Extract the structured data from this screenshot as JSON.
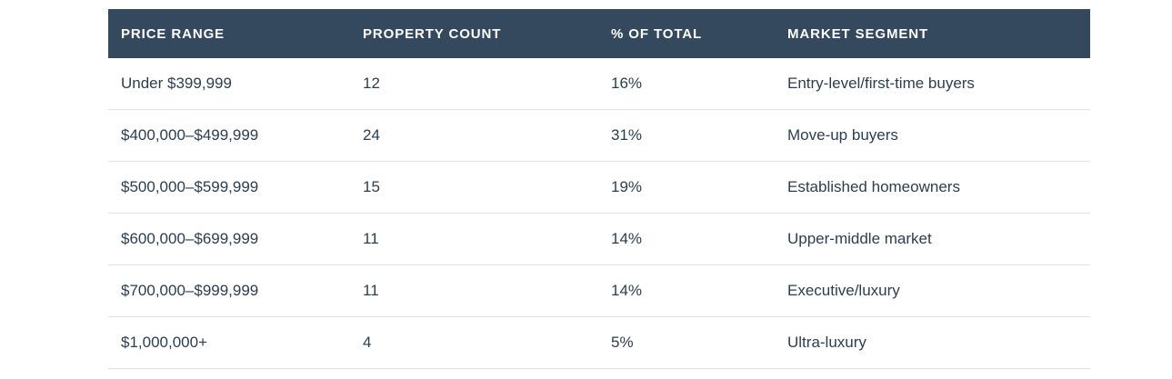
{
  "table": {
    "headers": [
      "PRICE RANGE",
      "PROPERTY COUNT",
      "% OF TOTAL",
      "MARKET SEGMENT"
    ],
    "rows": [
      {
        "price_range": "Under $399,999",
        "property_count": "12",
        "pct_of_total": "16%",
        "market_segment": "Entry-level/first-time buyers"
      },
      {
        "price_range": "$400,000–$499,999",
        "property_count": "24",
        "pct_of_total": "31%",
        "market_segment": "Move-up buyers"
      },
      {
        "price_range": "$500,000–$599,999",
        "property_count": "15",
        "pct_of_total": "19%",
        "market_segment": "Established homeowners"
      },
      {
        "price_range": "$600,000–$699,999",
        "property_count": "11",
        "pct_of_total": "14%",
        "market_segment": "Upper-middle market"
      },
      {
        "price_range": "$700,000–$999,999",
        "property_count": "11",
        "pct_of_total": "14%",
        "market_segment": "Executive/luxury"
      },
      {
        "price_range": "$1,000,000+",
        "property_count": "4",
        "pct_of_total": "5%",
        "market_segment": "Ultra-luxury"
      }
    ]
  },
  "colors": {
    "header_background": "#34495e",
    "header_text": "#ffffff",
    "row_text": "#2c3e50",
    "divider": "#e0e3e6",
    "page_background": "#ffffff"
  },
  "chart_data": {
    "type": "table",
    "title": "",
    "columns": [
      "PRICE RANGE",
      "PROPERTY COUNT",
      "% OF TOTAL",
      "MARKET SEGMENT"
    ],
    "rows": [
      [
        "Under $399,999",
        12,
        "16%",
        "Entry-level/first-time buyers"
      ],
      [
        "$400,000–$499,999",
        24,
        "31%",
        "Move-up buyers"
      ],
      [
        "$500,000–$599,999",
        15,
        "19%",
        "Established homeowners"
      ],
      [
        "$600,000–$699,999",
        11,
        "14%",
        "Upper-middle market"
      ],
      [
        "$700,000–$999,999",
        11,
        "14%",
        "Executive/luxury"
      ],
      [
        "$1,000,000+",
        4,
        "5%",
        "Ultra-luxury"
      ]
    ]
  }
}
